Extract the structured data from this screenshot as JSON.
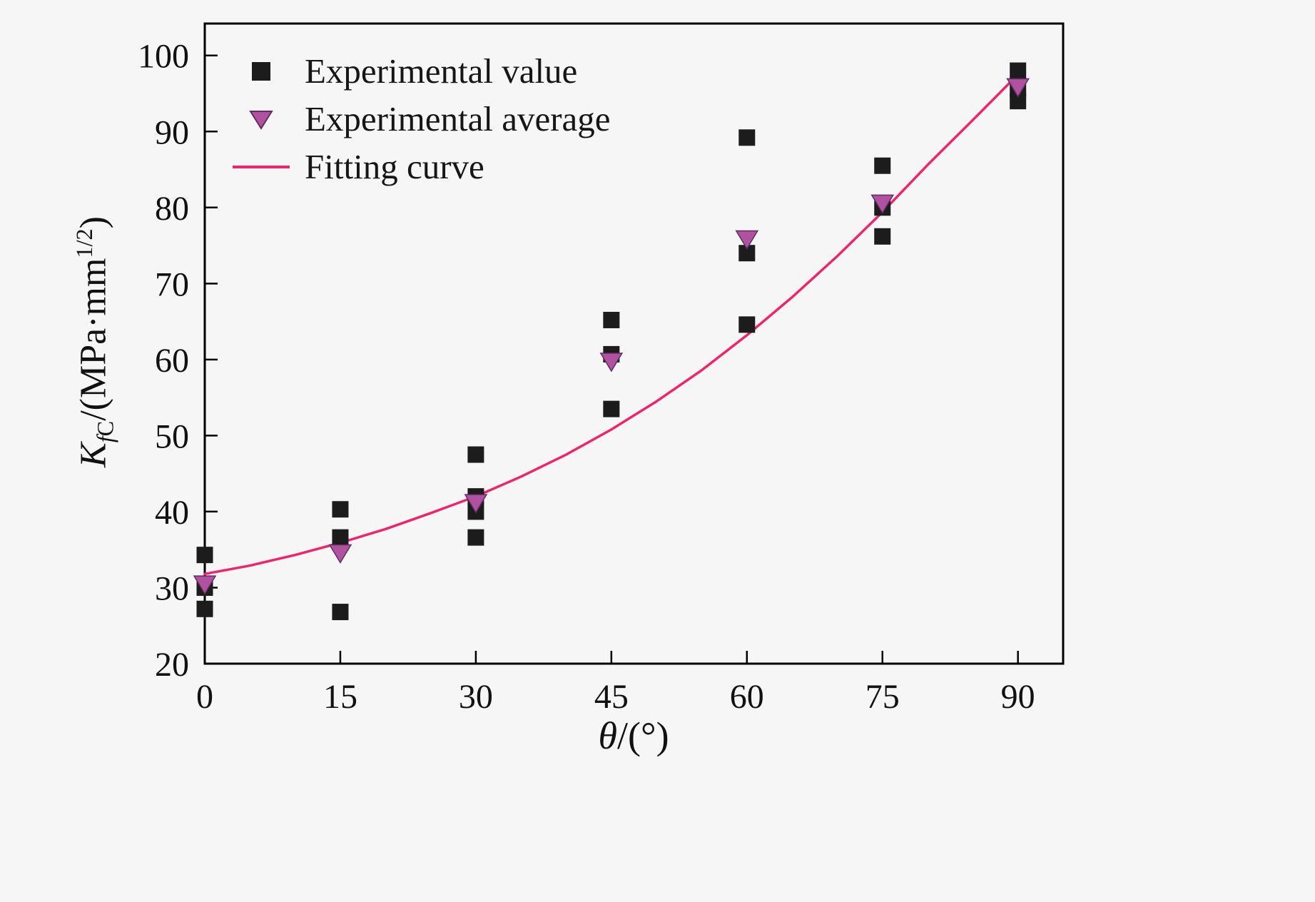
{
  "chart_data": {
    "type": "scatter",
    "title": "",
    "xlabel": "θ/(°)",
    "ylabel": "KfC/(MPa·mm^1/2)",
    "xlabel_parts": {
      "symbol": "θ",
      "rest": "/(°)"
    },
    "ylabel_parts": {
      "K": "K",
      "sub_f": "f",
      "sub_C": "C",
      "mid": "/(MPa·mm",
      "sup": "1/2",
      "end": ")"
    },
    "xlim": [
      0,
      95
    ],
    "ylim": [
      20,
      104.2
    ],
    "x_ticks": [
      0,
      15,
      30,
      45,
      60,
      75,
      90
    ],
    "y_ticks": [
      20,
      30,
      40,
      50,
      60,
      70,
      80,
      90,
      100
    ],
    "grid": false,
    "legend_position": "upper-left",
    "series": [
      {
        "name": "Experimental value",
        "type": "scatter",
        "marker": "square",
        "color": "#1c1c1c",
        "points": [
          [
            0,
            34.3
          ],
          [
            0,
            30.0
          ],
          [
            0,
            27.2
          ],
          [
            15,
            40.3
          ],
          [
            15,
            36.6
          ],
          [
            15,
            26.8
          ],
          [
            30,
            47.5
          ],
          [
            30,
            42.0
          ],
          [
            30,
            40.0
          ],
          [
            30,
            36.6
          ],
          [
            45,
            65.2
          ],
          [
            45,
            60.7
          ],
          [
            45,
            53.5
          ],
          [
            60,
            89.2
          ],
          [
            60,
            74.0
          ],
          [
            60,
            64.6
          ],
          [
            75,
            85.5
          ],
          [
            75,
            80.0
          ],
          [
            75,
            76.2
          ],
          [
            90,
            98.0
          ],
          [
            90,
            95.6
          ],
          [
            90,
            94.0
          ]
        ]
      },
      {
        "name": "Experimental average",
        "type": "scatter",
        "marker": "triangle-down",
        "color": "#b0529f",
        "edge_color": "#5f2d62",
        "points": [
          [
            0,
            30.5
          ],
          [
            15,
            34.6
          ],
          [
            30,
            41.2
          ],
          [
            45,
            59.8
          ],
          [
            60,
            75.9
          ],
          [
            75,
            80.6
          ],
          [
            90,
            95.9
          ]
        ]
      },
      {
        "name": "Fitting curve",
        "type": "line",
        "color": "#f0246e",
        "points": [
          [
            0,
            31.8
          ],
          [
            5,
            32.9
          ],
          [
            10,
            34.3
          ],
          [
            15,
            35.9
          ],
          [
            20,
            37.7
          ],
          [
            25,
            39.8
          ],
          [
            30,
            42.0
          ],
          [
            35,
            44.6
          ],
          [
            40,
            47.5
          ],
          [
            45,
            50.8
          ],
          [
            50,
            54.5
          ],
          [
            55,
            58.6
          ],
          [
            60,
            63.2
          ],
          [
            65,
            68.2
          ],
          [
            70,
            73.6
          ],
          [
            75,
            79.4
          ],
          [
            80,
            85.6
          ],
          [
            85,
            91.5
          ],
          [
            90,
            97.5
          ]
        ]
      }
    ]
  },
  "style": {
    "background": "#f6f6f6",
    "axis_color": "#000000",
    "text_color": "#111111"
  }
}
